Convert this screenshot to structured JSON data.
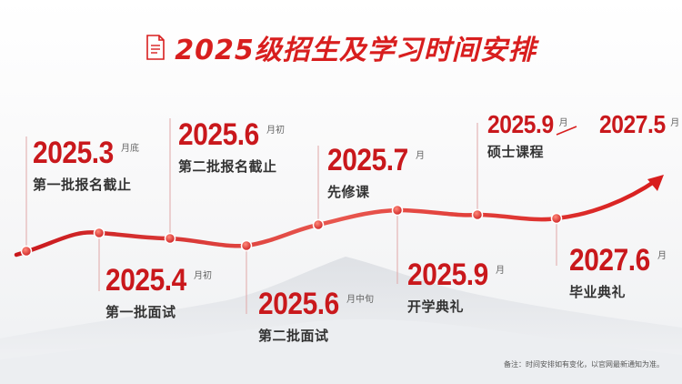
{
  "title": "2025级招生及学习时间安排",
  "colors": {
    "accent": "#d81e1e",
    "date": "#c9181c",
    "text": "#333333",
    "guide": "#e0a7a7"
  },
  "milestones": [
    {
      "date": "2025.3",
      "suffix": "月底",
      "label": "第一批报名截止"
    },
    {
      "date": "2025.4",
      "suffix": "月初",
      "label": "第一批面试"
    },
    {
      "date": "2025.6",
      "suffix": "月初",
      "label": "第二批报名截止"
    },
    {
      "date": "2025.6",
      "suffix": "月中旬",
      "label": "第二批面试"
    },
    {
      "date": "2025.7",
      "suffix": "月",
      "label": "先修课"
    },
    {
      "date": "2025.9",
      "suffix": "月",
      "label": "开学典礼"
    },
    {
      "date": "2025.9",
      "suffix": "月",
      "date_end": "2027.5",
      "suffix_end": "月",
      "label": "硕士课程"
    },
    {
      "date": "2027.6",
      "suffix": "月",
      "label": "毕业典礼"
    }
  ],
  "note": "备注：时间安排如有变化，以官网最新通知为准。"
}
